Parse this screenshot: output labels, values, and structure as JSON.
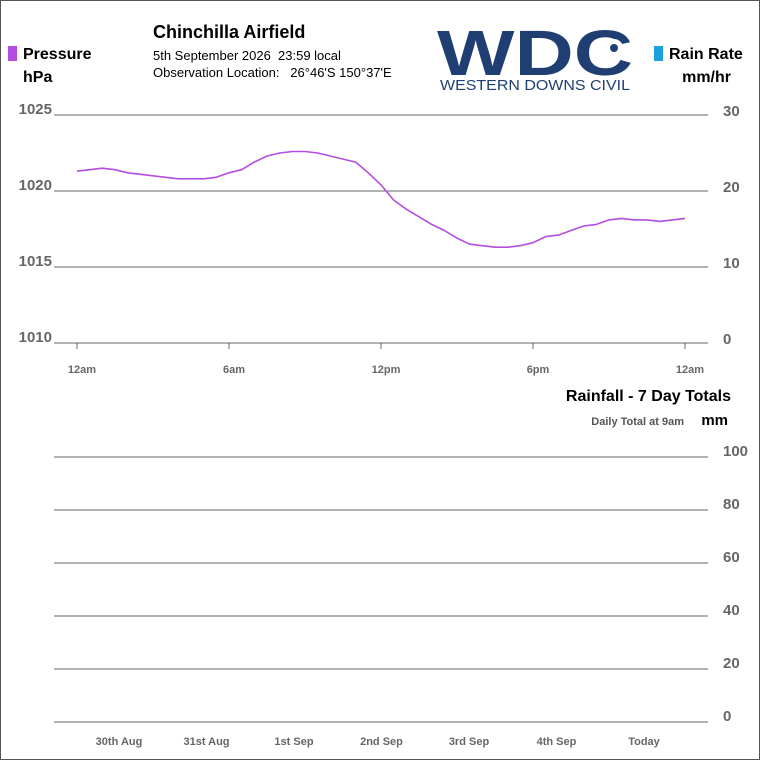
{
  "header": {
    "station_name": "Chinchilla Airfield",
    "date_line": "5th September 2026  23:59 local",
    "location_line": "Observation Location:   26°46'S 150°37'E"
  },
  "logo": {
    "letters": "WDC",
    "subtitle": "WESTERN DOWNS CIVIL",
    "color": "#1f3f73"
  },
  "legend": {
    "pressure": {
      "label": "Pressure",
      "unit": "hPa",
      "color": "#b54de0"
    },
    "rain_rate": {
      "label": "Rain Rate",
      "unit": "mm/hr",
      "color": "#1aa0dc"
    }
  },
  "rainfall_panel": {
    "title": "Rainfall - 7 Day Totals",
    "subtitle": "Daily Total at 9am",
    "unit": "mm"
  },
  "chart_data": [
    {
      "type": "line",
      "x_ticks": [
        "12am",
        "6am",
        "12pm",
        "6pm",
        "12am"
      ],
      "x_tick_hours": [
        0,
        6,
        12,
        18,
        24
      ],
      "xlim": [
        0,
        24
      ],
      "y_left": {
        "ticks": [
          1025,
          1020,
          1015,
          1010
        ],
        "ylim": [
          1010,
          1025
        ]
      },
      "y_right": {
        "ticks": [
          30,
          20,
          10,
          0
        ],
        "ylim": [
          0,
          30
        ]
      },
      "grid": true,
      "series": [
        {
          "name": "Pressure",
          "color": "#b54de0",
          "axis": "left",
          "x": [
            0,
            0.5,
            1,
            1.5,
            2,
            2.5,
            3,
            3.5,
            4,
            4.5,
            5,
            5.5,
            6,
            6.5,
            7,
            7.5,
            8,
            8.5,
            9,
            9.5,
            10,
            10.5,
            11,
            11.5,
            12,
            12.5,
            13,
            13.5,
            14,
            14.5,
            15,
            15.5,
            16,
            16.5,
            17,
            17.5,
            18,
            18.5,
            19,
            19.5,
            20,
            20.5,
            21,
            21.5,
            22,
            22.5,
            23,
            23.5,
            24
          ],
          "y": [
            1021.3,
            1021.4,
            1021.5,
            1021.4,
            1021.2,
            1021.1,
            1021.0,
            1020.9,
            1020.8,
            1020.8,
            1020.8,
            1020.9,
            1021.2,
            1021.4,
            1021.9,
            1022.3,
            1022.5,
            1022.6,
            1022.6,
            1022.5,
            1022.3,
            1022.1,
            1021.9,
            1021.2,
            1020.4,
            1019.4,
            1018.8,
            1018.3,
            1017.8,
            1017.4,
            1016.9,
            1016.5,
            1016.4,
            1016.3,
            1016.3,
            1016.4,
            1016.6,
            1017.0,
            1017.1,
            1017.4,
            1017.7,
            1017.8,
            1018.1,
            1018.2,
            1018.1,
            1018.1,
            1018.0,
            1018.1,
            1018.2
          ]
        }
      ]
    },
    {
      "type": "bar",
      "categories": [
        "30th Aug",
        "31st Aug",
        "1st Sep",
        "2nd Sep",
        "3rd Sep",
        "4th Sep",
        "Today"
      ],
      "y_right": {
        "ticks": [
          100,
          80,
          60,
          40,
          20,
          0
        ],
        "ylim": [
          0,
          100
        ]
      },
      "grid": true,
      "series": [
        {
          "name": "Rainfall",
          "color": "#1aa0dc",
          "values": [
            0,
            0,
            0,
            0,
            0,
            0,
            0
          ]
        }
      ]
    }
  ]
}
